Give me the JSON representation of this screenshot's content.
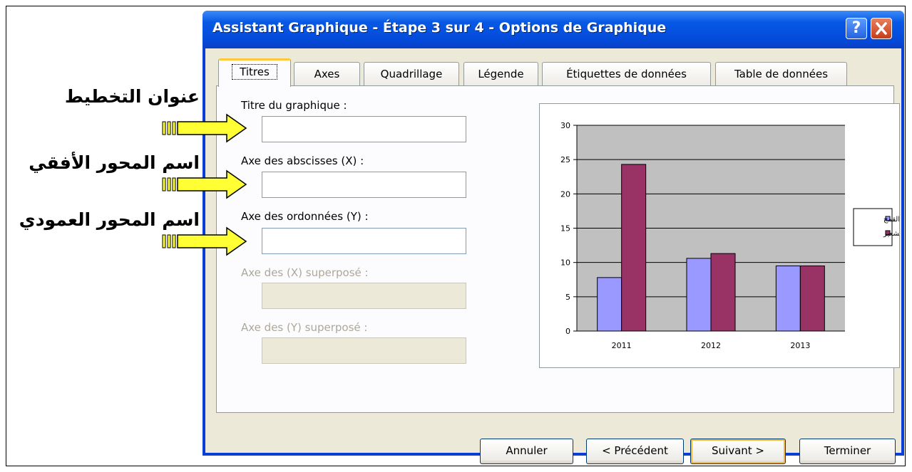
{
  "annotations": [
    "عنوان التخطيط",
    "اسم المحور الأفقي",
    "اسم المحور العمودي"
  ],
  "dialog": {
    "title": "Assistant Graphique - Étape 3 sur 4 - Options de Graphique",
    "help_button": "?",
    "tabs": [
      "Titres",
      "Axes",
      "Quadrillage",
      "Légende",
      "Étiquettes de données",
      "Table de données"
    ],
    "fields": [
      {
        "label": "Titre du graphique :",
        "enabled": true
      },
      {
        "label": "Axe des abscisses (X) :",
        "enabled": true
      },
      {
        "label": "Axe des ordonnées (Y) :",
        "enabled": true
      },
      {
        "label": "Axe des (X)  superposé :",
        "enabled": false
      },
      {
        "label": "Axe des (Y) superposé :",
        "enabled": false
      }
    ],
    "buttons": [
      "Annuler",
      "< Précédent",
      "Suivant >",
      "Terminer"
    ]
  },
  "chart_data": {
    "type": "bar",
    "categories": [
      "2011",
      "2012",
      "2013"
    ],
    "series": [
      {
        "name": "القمح",
        "color": "#9999ff",
        "values": [
          7.8,
          10.6,
          9.5
        ]
      },
      {
        "name": "الشعير",
        "color": "#993366",
        "values": [
          24.3,
          11.3,
          9.5
        ]
      }
    ],
    "ylim": [
      0,
      30
    ],
    "yticks": [
      0,
      5,
      10,
      15,
      20,
      25,
      30
    ],
    "grid": true,
    "legend": "right"
  }
}
